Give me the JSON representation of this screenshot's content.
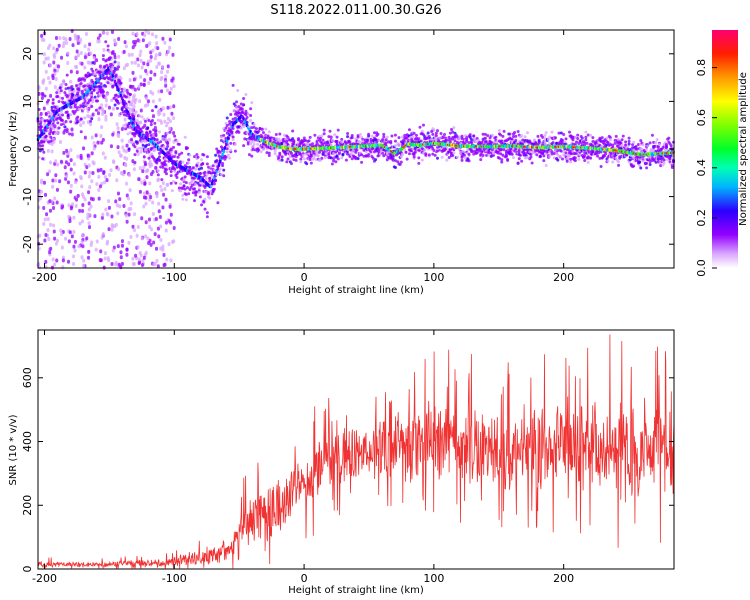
{
  "title": "S118.2022.011.00.30.G26",
  "chart_data": [
    {
      "type": "heatmap",
      "xlabel": "Height of straight line (km)",
      "ylabel": "Frequency (Hz)",
      "xlim": [
        -205,
        285
      ],
      "ylim": [
        -25,
        25
      ],
      "x_ticks": [
        -200,
        -100,
        0,
        100,
        200
      ],
      "y_ticks": [
        -20,
        -10,
        0,
        10,
        20
      ],
      "colorbar": {
        "label": "Normalized spectral amplitude",
        "range": [
          0,
          0.95
        ],
        "ticks": [
          0.0,
          0.2,
          0.4,
          0.6,
          0.8
        ]
      },
      "ridge": {
        "x": [
          -205,
          -190,
          -170,
          -150,
          -130,
          -115,
          -100,
          -90,
          -80,
          -72,
          -65,
          -55,
          -48,
          -40,
          -30,
          -20,
          -10,
          0,
          20,
          40,
          60,
          70,
          80,
          90,
          100,
          120,
          140,
          160,
          180,
          200,
          220,
          240,
          260,
          285
        ],
        "freq": [
          2,
          8,
          11,
          17,
          4,
          1,
          -3,
          -4.5,
          -6,
          -8,
          -3,
          5,
          7,
          3,
          1.5,
          0.5,
          0,
          0,
          0.2,
          0.5,
          0.8,
          -1,
          1,
          0.8,
          1.2,
          0.6,
          0.5,
          0.6,
          0.3,
          0.5,
          0.2,
          -0.3,
          -1.2,
          -0.8
        ]
      }
    },
    {
      "type": "line",
      "xlabel": "Height of straight line (km)",
      "ylabel": "SNR (10 * v/v)",
      "xlim": [
        -205,
        285
      ],
      "ylim": [
        0,
        750
      ],
      "x_ticks": [
        -200,
        -100,
        0,
        100,
        200
      ],
      "y_ticks": [
        0,
        200,
        400,
        600
      ],
      "color": "#f03232",
      "envelope": {
        "x": [
          -205,
          -170,
          -110,
          -90,
          -70,
          -55,
          -45,
          -35,
          -20,
          0,
          20,
          40,
          60,
          80,
          100,
          120,
          150,
          180,
          200,
          230,
          260,
          285
        ],
        "mean": [
          15,
          14,
          18,
          30,
          45,
          70,
          150,
          170,
          200,
          260,
          330,
          365,
          380,
          390,
          395,
          385,
          370,
          370,
          380,
          375,
          370,
          380
        ],
        "spread": [
          12,
          10,
          15,
          25,
          35,
          50,
          80,
          100,
          110,
          115,
          105,
          100,
          110,
          130,
          150,
          150,
          140,
          160,
          170,
          180,
          190,
          180
        ]
      }
    }
  ]
}
